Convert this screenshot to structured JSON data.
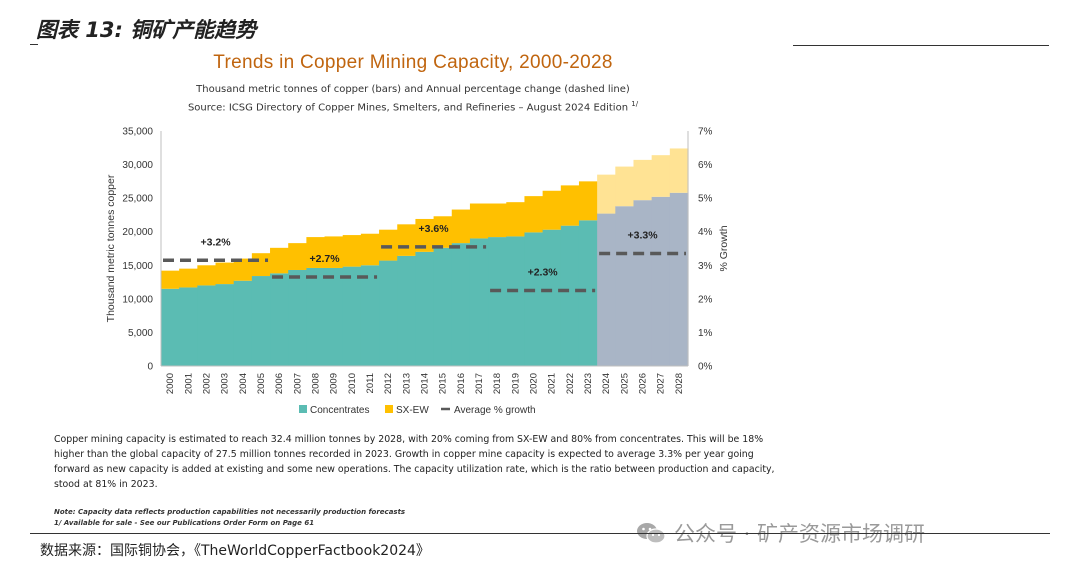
{
  "figure_label": "图表 13:  铜矿产能趋势",
  "source_text": "数据来源：国际铜协会，《TheWorldCopperFactbook2024》",
  "watermark_text": "公众号 · 矿产资源市场调研",
  "description": "Copper mining capacity is estimated to reach 32.4 million tonnes by 2028, with 20% coming from SX-EW and 80% from concentrates. This will be 18% higher than the global capacity of 27.5 million tonnes recorded in 2023.  Growth in copper mine capacity is expected to average 3.3% per year going forward as new capacity is added at existing and some new operations. The capacity utilization rate, which is the ratio between production and capacity, stood at 81% in 2023.",
  "note_line1": "Note: Capacity data reflects production capabilities not necessarily production forecasts",
  "note_line2": "1/ Available for sale - See our Publications Order Form on Page 61",
  "chart_data": {
    "type": "area",
    "title": "Trends in Copper Mining Capacity, 2000-2028",
    "subtitle_line1": "Thousand metric tonnes of copper (bars) and Annual percentage change (dashed line)",
    "subtitle_line2": "Source: ICSG Directory of Copper Mines, Smelters, and Refineries – August 2024 Edition",
    "subtitle_sup": "1/",
    "ylabel": "Thousand metric tonnes copper",
    "y2label": "% Growth",
    "ylim": [
      0,
      35000
    ],
    "y2lim": [
      0,
      7
    ],
    "y_ticks": [
      "0",
      "5,000",
      "10,000",
      "15,000",
      "20,000",
      "25,000",
      "30,000",
      "35,000"
    ],
    "y2_ticks": [
      "0%",
      "1%",
      "2%",
      "3%",
      "4%",
      "5%",
      "6%",
      "7%"
    ],
    "categories": [
      "2000",
      "2001",
      "2002",
      "2003",
      "2004",
      "2005",
      "2006",
      "2007",
      "2008",
      "2009",
      "2010",
      "2011",
      "2012",
      "2013",
      "2014",
      "2015",
      "2016",
      "2017",
      "2018",
      "2019",
      "2020",
      "2021",
      "2022",
      "2023",
      "2024",
      "2025",
      "2026",
      "2027",
      "2028"
    ],
    "series": [
      {
        "name": "Concentrates",
        "color": "#5bbcb3",
        "forecast_color": "#a9b5c6",
        "values": [
          11500,
          11700,
          12000,
          12200,
          12700,
          13400,
          13800,
          14300,
          14600,
          14600,
          14800,
          15000,
          15700,
          16400,
          17000,
          17600,
          18300,
          19000,
          19200,
          19300,
          19900,
          20300,
          20900,
          21700,
          22700,
          23800,
          24700,
          25200,
          25800
        ]
      },
      {
        "name": "SX-EW",
        "color": "#ffc000",
        "forecast_color": "#ffe394",
        "values": [
          2700,
          2800,
          3000,
          3200,
          3300,
          3400,
          3800,
          4000,
          4600,
          4700,
          4700,
          4700,
          4600,
          4700,
          4900,
          4700,
          5000,
          5200,
          5000,
          5100,
          5400,
          5800,
          6000,
          5800,
          5800,
          5900,
          6000,
          6200,
          6600
        ]
      }
    ],
    "average_growth": [
      {
        "label": "+3.2%",
        "from": "2000",
        "to": "2005",
        "value": 3.15
      },
      {
        "label": "+2.7%",
        "from": "2006",
        "to": "2011",
        "value": 2.65
      },
      {
        "label": "+3.6%",
        "from": "2012",
        "to": "2017",
        "value": 3.55
      },
      {
        "label": "+2.3%",
        "from": "2018",
        "to": "2023",
        "value": 2.25
      },
      {
        "label": "+3.3%",
        "from": "2024",
        "to": "2028",
        "value": 3.35
      }
    ],
    "legend": [
      "Concentrates",
      "SX-EW",
      "Average % growth"
    ],
    "legend_position": "bottom-center"
  }
}
